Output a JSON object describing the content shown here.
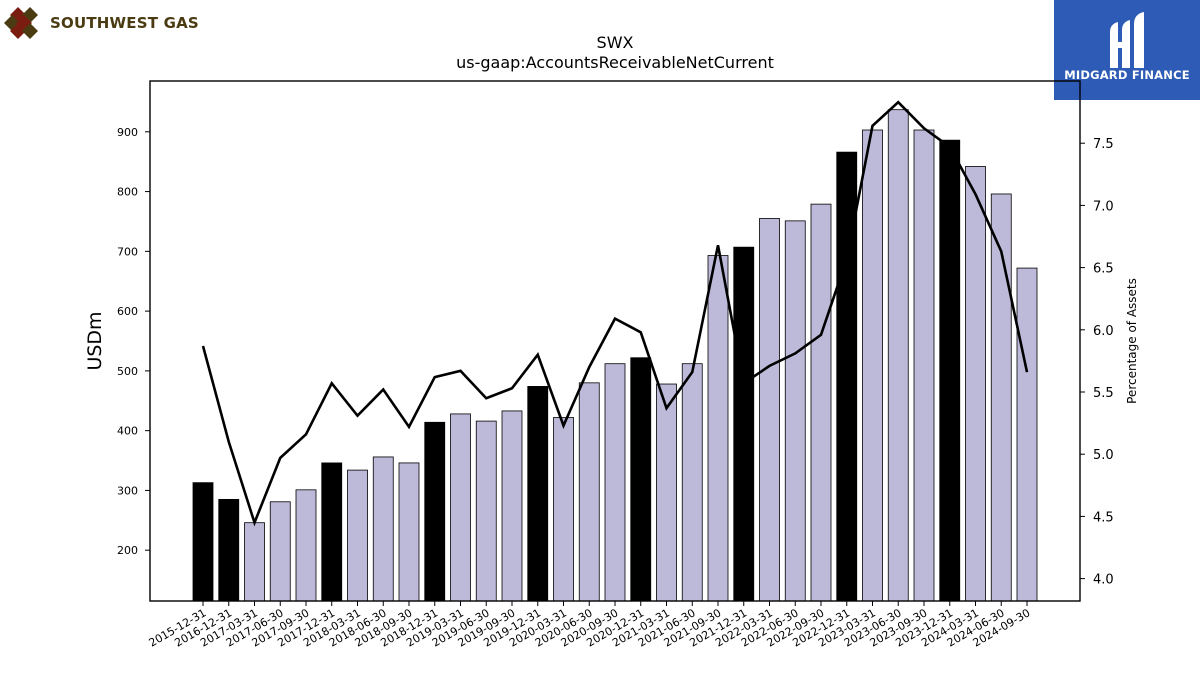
{
  "brand": {
    "left_name": "SOUTHWEST GAS",
    "right_name": "MIDGARD FINANCE",
    "left_logo_icon": "diamond-lattice-logo",
    "right_logo_icon": "mf-monogram-logo",
    "right_bg_color": "#2d5bb5"
  },
  "chart_data": {
    "type": "bar",
    "title": "SWX",
    "subtitle": "us-gaap:AccountsReceivableNetCurrent",
    "ylabel": "USDm",
    "y2label": "Percentage of Assets",
    "ylim": [
      115,
      985
    ],
    "y2lim": [
      3.82,
      8.0
    ],
    "yticks": [
      200,
      300,
      400,
      500,
      600,
      700,
      800,
      900
    ],
    "y2ticks": [
      "4.0",
      "4.5",
      "5.0",
      "5.5",
      "6.0",
      "6.5",
      "7.0",
      "7.5"
    ],
    "categories": [
      "2015-12-31",
      "2016-12-31",
      "2017-03-31",
      "2017-06-30",
      "2017-09-30",
      "2017-12-31",
      "2018-03-31",
      "2018-06-30",
      "2018-09-30",
      "2018-12-31",
      "2019-03-31",
      "2019-06-30",
      "2019-09-30",
      "2019-12-31",
      "2020-03-31",
      "2020-06-30",
      "2020-09-30",
      "2020-12-31",
      "2021-03-31",
      "2021-06-30",
      "2021-09-30",
      "2021-12-31",
      "2022-03-31",
      "2022-06-30",
      "2022-09-30",
      "2022-12-31",
      "2023-03-31",
      "2023-06-30",
      "2023-09-30",
      "2023-12-31",
      "2024-03-31",
      "2024-06-30",
      "2024-09-30"
    ],
    "series": [
      {
        "values": [
          313,
          285,
          246,
          281,
          301,
          346,
          334,
          356,
          346,
          414,
          428,
          416,
          433,
          474,
          422,
          480,
          512,
          522,
          478,
          512,
          693,
          707,
          755,
          751,
          779,
          866,
          903,
          937,
          903,
          886,
          842,
          796,
          672
        ],
        "annual": [
          true,
          true,
          false,
          false,
          false,
          true,
          false,
          false,
          false,
          true,
          false,
          false,
          false,
          true,
          false,
          false,
          false,
          true,
          false,
          false,
          false,
          true,
          false,
          false,
          false,
          true,
          false,
          false,
          false,
          true,
          false,
          false,
          false
        ]
      },
      {
        "axis": "right",
        "values": [
          5.87,
          5.1,
          4.45,
          4.97,
          5.16,
          5.57,
          5.31,
          5.52,
          5.22,
          5.62,
          5.67,
          5.45,
          5.53,
          5.8,
          5.23,
          5.7,
          6.09,
          5.98,
          5.37,
          5.66,
          6.68,
          5.57,
          5.71,
          5.81,
          5.96,
          6.57,
          7.64,
          7.83,
          7.62,
          7.47,
          7.09,
          6.63,
          5.66
        ]
      }
    ],
    "colors": {
      "annual_bar": "#000000",
      "quarter_bar": "#bdbad9",
      "line": "#000000"
    }
  }
}
